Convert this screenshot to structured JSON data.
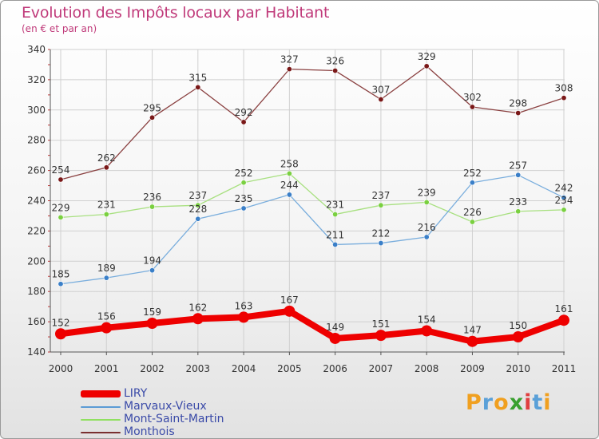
{
  "title": "Evolution des Impôts locaux par Habitant",
  "subtitle": "(en € et par an)",
  "logo": {
    "letters": [
      "P",
      "r",
      "o",
      "x",
      "i",
      "t",
      "i"
    ],
    "colors": [
      "#f0a020",
      "#5aa0d8",
      "#f0a020",
      "#3aa030",
      "#e04040",
      "#5aa0d8",
      "#f0a020"
    ]
  },
  "chart_data": {
    "type": "line",
    "title": "Evolution des Impôts locaux par Habitant",
    "subtitle": "(en € et par an)",
    "xlabel": "",
    "ylabel": "",
    "categories": [
      "2000",
      "2001",
      "2002",
      "2003",
      "2004",
      "2005",
      "2006",
      "2007",
      "2008",
      "2009",
      "2010",
      "2011"
    ],
    "ylim": [
      140,
      340
    ],
    "yticks": [
      "140",
      "160",
      "180",
      "200",
      "220",
      "240",
      "260",
      "280",
      "300",
      "320",
      "340"
    ],
    "grid": true,
    "legend_position": "bottom-left",
    "series": [
      {
        "name": "LIRY",
        "color": "#ee0000",
        "values": [
          152,
          156,
          159,
          162,
          163,
          167,
          149,
          151,
          154,
          147,
          150,
          161
        ],
        "labels": [
          "152",
          "156",
          "159",
          "162",
          "163",
          "167",
          "149",
          "151",
          "154",
          "147",
          "150",
          "161"
        ]
      },
      {
        "name": "Marvaux-Vieux",
        "color": "#5b9bd5",
        "values": [
          185,
          189,
          194,
          228,
          235,
          244,
          211,
          212,
          216,
          252,
          257,
          242
        ],
        "labels": [
          "185",
          "189",
          "194",
          "228",
          "235",
          "244",
          "211",
          "212",
          "216",
          "252",
          "257",
          "242"
        ]
      },
      {
        "name": "Mont-Saint-Martin",
        "color": "#90e060",
        "values": [
          229,
          231,
          236,
          237,
          252,
          258,
          231,
          237,
          239,
          226,
          233,
          234
        ],
        "labels": [
          "229",
          "231",
          "236",
          "237",
          "252",
          "258",
          "231",
          "237",
          "239",
          "226",
          "233",
          "234"
        ]
      },
      {
        "name": "Monthois",
        "color": "#7a3030",
        "values": [
          254,
          262,
          295,
          315,
          292,
          327,
          326,
          307,
          329,
          302,
          298,
          308
        ],
        "labels": [
          "254",
          "262",
          "295",
          "315",
          "292",
          "327",
          "326",
          "307",
          "329",
          "302",
          "298",
          "308"
        ]
      }
    ]
  }
}
